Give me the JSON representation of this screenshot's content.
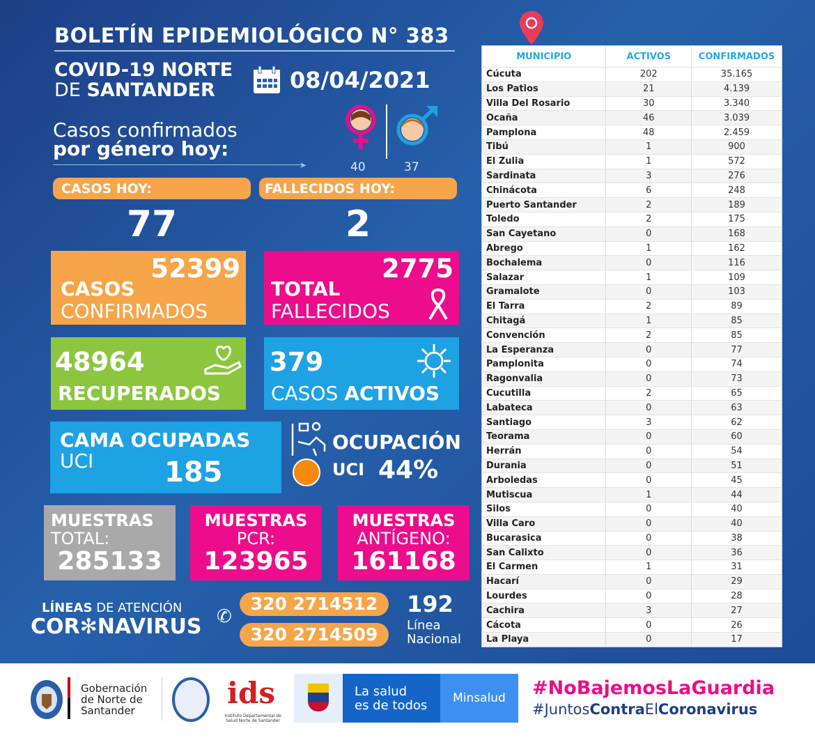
{
  "header": {
    "title": "BOLETÍN EPIDEMIOLÓGICO N° 383",
    "region_line1": "COVID-19 NORTE",
    "region_line2_prefix": "DE",
    "region_line2_bold": "SANTANDER",
    "date": "08/04/2021",
    "calendar_icon": "calendar-icon"
  },
  "gender": {
    "label_line1": "Casos confirmados",
    "label_line2": "por género hoy:",
    "female_count": "40",
    "male_count": "37"
  },
  "today": {
    "cases_label": "CASOS HOY:",
    "cases_value": "77",
    "deaths_label": "FALLECIDOS HOY:",
    "deaths_value": "2"
  },
  "cards": {
    "confirmed": {
      "value": "52399",
      "label1": "CASOS",
      "label2": "CONFIRMADOS",
      "color": "#f7a54a"
    },
    "deaths": {
      "value": "2775",
      "label1": "TOTAL",
      "label2": "FALLECIDOS",
      "color": "#ec0d8c"
    },
    "recovered": {
      "value": "48964",
      "label": "RECUPERADOS",
      "color": "#8cc63f"
    },
    "active": {
      "value": "379",
      "label1": "CASOS",
      "label2": "ACTIVOS",
      "color": "#1ea2e3"
    },
    "icu_beds": {
      "label1": "CAMA OCUPADAS",
      "label2": "UCI",
      "value": "185",
      "color": "#1ea2e3"
    },
    "icu_occupancy": {
      "label1": "OCUPACIÓN",
      "label2": "UCI",
      "value": "44%",
      "dot_color": "#f7890f"
    }
  },
  "samples": [
    {
      "label1": "MUESTRAS",
      "label2": "TOTAL:",
      "value": "285133",
      "color": "#a9a9a9"
    },
    {
      "label1": "MUESTRAS",
      "label2": "PCR:",
      "value": "123965",
      "color": "#ec0d8c"
    },
    {
      "label1": "MUESTRAS",
      "label2": "ANTÍGENO:",
      "value": "161168",
      "color": "#ec0d8c"
    }
  ],
  "hotline": {
    "label_bold": "LÍNEAS",
    "label_rest": "DE ATENCIÓN",
    "brand_a": "COR",
    "brand_b": "NAVIRUS",
    "phones": [
      "320 2714512",
      "320 2714509"
    ],
    "national_number": "192",
    "national_label1": "Línea",
    "national_label2": "Nacional"
  },
  "table": {
    "headers": [
      "MUNICIPIO",
      "ACTIVOS",
      "CONFIRMADOS"
    ],
    "rows": [
      [
        "Cúcuta",
        "202",
        "35.165"
      ],
      [
        "Los Patios",
        "21",
        "4.139"
      ],
      [
        "Villa Del Rosario",
        "30",
        "3.340"
      ],
      [
        "Ocaña",
        "46",
        "3.039"
      ],
      [
        "Pamplona",
        "48",
        "2.459"
      ],
      [
        "Tibú",
        "1",
        "900"
      ],
      [
        "El Zulia",
        "1",
        "572"
      ],
      [
        "Sardinata",
        "3",
        "276"
      ],
      [
        "Chinácota",
        "6",
        "248"
      ],
      [
        "Puerto Santander",
        "2",
        "189"
      ],
      [
        "Toledo",
        "2",
        "175"
      ],
      [
        "San Cayetano",
        "0",
        "168"
      ],
      [
        "Abrego",
        "1",
        "162"
      ],
      [
        "Bochalema",
        "0",
        "116"
      ],
      [
        "Salazar",
        "1",
        "109"
      ],
      [
        "Gramalote",
        "0",
        "103"
      ],
      [
        "El Tarra",
        "2",
        "89"
      ],
      [
        "Chitagá",
        "1",
        "85"
      ],
      [
        "Convención",
        "2",
        "85"
      ],
      [
        "La Esperanza",
        "0",
        "77"
      ],
      [
        "Pamplonita",
        "0",
        "74"
      ],
      [
        "Ragonvalia",
        "0",
        "73"
      ],
      [
        "Cucutilla",
        "2",
        "65"
      ],
      [
        "Labateca",
        "0",
        "63"
      ],
      [
        "Santiago",
        "3",
        "62"
      ],
      [
        "Teorama",
        "0",
        "60"
      ],
      [
        "Herrán",
        "0",
        "54"
      ],
      [
        "Durania",
        "0",
        "51"
      ],
      [
        "Arboledas",
        "0",
        "45"
      ],
      [
        "Mutiscua",
        "1",
        "44"
      ],
      [
        "Silos",
        "0",
        "40"
      ],
      [
        "Villa Caro",
        "0",
        "40"
      ],
      [
        "Bucarasica",
        "0",
        "38"
      ],
      [
        "San Calixto",
        "0",
        "36"
      ],
      [
        "El Carmen",
        "1",
        "31"
      ],
      [
        "Hacarí",
        "0",
        "29"
      ],
      [
        "Lourdes",
        "0",
        "28"
      ],
      [
        "Cachira",
        "3",
        "27"
      ],
      [
        "Cácota",
        "0",
        "26"
      ],
      [
        "La Playa",
        "0",
        "17"
      ]
    ]
  },
  "footer": {
    "gob_line1": "Gobernación",
    "gob_line2": "de Norte de",
    "gob_line3": "Santander",
    "ids_caption": "Instituto Departamental de Salud Norte de Santander",
    "salud_line1": "La salud",
    "salud_line2": "es de todos",
    "minsalud": "Minsalud",
    "hashtag1": "#NoBajemosLaGuardia",
    "hashtag2_a": "#Juntos",
    "hashtag2_b": "Contra",
    "hashtag2_c": "El",
    "hashtag2_d": "Coronavirus",
    "hashtag_color": "#ec0d8c"
  }
}
